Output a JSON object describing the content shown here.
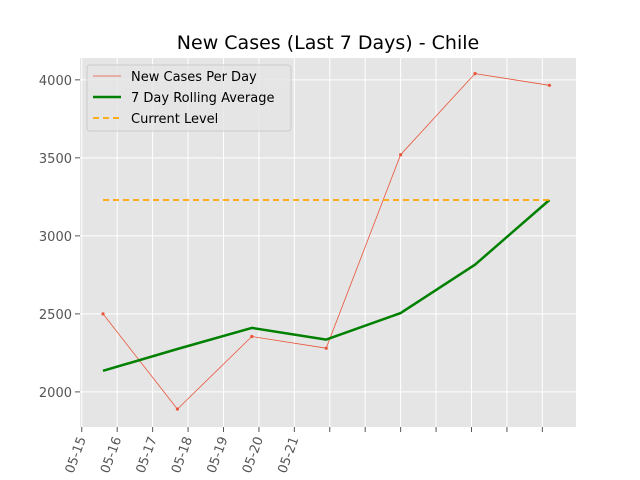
{
  "chart_data": {
    "type": "line",
    "title": "New Cases (Last 7 Days) - Chile",
    "xlabel": "",
    "ylabel": "",
    "x_tick_labels": [
      "05-15",
      "05-16",
      "05-17",
      "05-18",
      "05-19",
      "05-20",
      "05-21"
    ],
    "x_tick_label_days": [
      15,
      16,
      17,
      18,
      19,
      20,
      21
    ],
    "x_tick_marks_days": [
      15,
      16,
      17,
      18,
      19,
      20,
      21,
      22,
      23,
      24,
      25,
      26,
      27,
      28
    ],
    "xlim_days": [
      14.95,
      28.95
    ],
    "y_ticks": [
      2000,
      2500,
      3000,
      3500,
      4000
    ],
    "y_tick_labels": [
      "2000",
      "2500",
      "3000",
      "3500",
      "4000"
    ],
    "ylim": [
      1775,
      4140
    ],
    "grid": true,
    "legend_position": "top-left",
    "series": [
      {
        "name": "New Cases Per Day",
        "style": "thin-line-with-markers",
        "color": "#e8553a",
        "x_days": [
          15.6,
          17.7,
          19.8,
          21.9,
          24.0,
          26.1,
          28.2
        ],
        "values": [
          2500,
          1890,
          2355,
          2280,
          3520,
          4040,
          3965
        ]
      },
      {
        "name": "7 Day Rolling Average",
        "style": "thick-line",
        "color": "#008000",
        "x_days": [
          15.6,
          17.7,
          19.8,
          21.9,
          24.0,
          26.1,
          28.2
        ],
        "values": [
          2135,
          2275,
          2410,
          2335,
          2505,
          2815,
          3230
        ]
      },
      {
        "name": "Current Level",
        "style": "dashed",
        "color": "#ffa500",
        "x_days": [
          15.6,
          28.2
        ],
        "values": [
          3230,
          3230
        ]
      }
    ]
  },
  "colors": {
    "plot_background": "#e5e5e5",
    "grid": "#ffffff",
    "tick_text": "#555555"
  }
}
